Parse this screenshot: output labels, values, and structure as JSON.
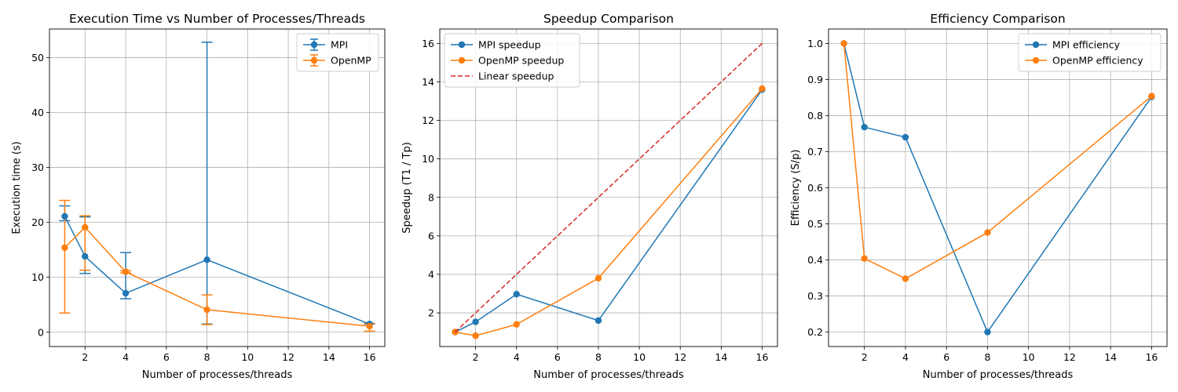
{
  "colors": {
    "mpi": "#1f77b4",
    "omp": "#ff7f0e",
    "linear": "#d62728",
    "grid": "#b0b0b0"
  },
  "chart_data": [
    {
      "type": "line",
      "title": "Execution Time vs Number of Processes/Threads",
      "xlabel": "Number of processes/threads",
      "ylabel": "Execution time (s)",
      "xlim": [
        0.25,
        16.75
      ],
      "ylim": [
        -2.6,
        55.2
      ],
      "xticks": [
        2,
        4,
        6,
        8,
        10,
        12,
        14,
        16
      ],
      "yticks": [
        0,
        10,
        20,
        30,
        40,
        50
      ],
      "grid": true,
      "legend_position": "top-right",
      "series": [
        {
          "name": "MPI",
          "x": [
            1,
            2,
            4,
            8,
            16
          ],
          "y": [
            21.1,
            13.8,
            7.1,
            13.2,
            1.5
          ],
          "err_low": [
            20.3,
            10.7,
            6.1,
            1.5,
            1.5
          ],
          "err_high": [
            23.0,
            21.0,
            14.5,
            52.8,
            1.6
          ]
        },
        {
          "name": "OpenMP",
          "x": [
            1,
            2,
            4,
            8,
            16
          ],
          "y": [
            15.4,
            19.1,
            11.0,
            4.1,
            1.1
          ],
          "err_low": [
            3.5,
            11.3,
            10.8,
            1.4,
            0.2
          ],
          "err_high": [
            24.0,
            21.2,
            11.2,
            6.8,
            1.6
          ]
        }
      ]
    },
    {
      "type": "line",
      "title": "Speedup Comparison",
      "xlabel": "Number of processes/threads",
      "ylabel": "Speedup (T1 / Tp)",
      "xlim": [
        0.25,
        16.75
      ],
      "ylim": [
        0.25,
        16.75
      ],
      "xticks": [
        2,
        4,
        6,
        8,
        10,
        12,
        14,
        16
      ],
      "yticks": [
        2,
        4,
        6,
        8,
        10,
        12,
        14,
        16
      ],
      "grid": true,
      "legend_position": "top-left",
      "series": [
        {
          "name": "MPI speedup",
          "x": [
            1,
            2,
            4,
            8,
            16
          ],
          "y": [
            1.0,
            1.53,
            2.97,
            1.6,
            13.6
          ]
        },
        {
          "name": "OpenMP speedup",
          "x": [
            1,
            2,
            4,
            8,
            16
          ],
          "y": [
            1.0,
            0.81,
            1.4,
            3.8,
            13.65
          ]
        },
        {
          "name": "Linear speedup",
          "x": [
            1,
            16
          ],
          "y": [
            1,
            16
          ],
          "dashed": true
        }
      ]
    },
    {
      "type": "line",
      "title": "Efficiency Comparison",
      "xlabel": "Number of processes/threads",
      "ylabel": "Efficiency (S/p)",
      "xlim": [
        0.25,
        16.75
      ],
      "ylim": [
        0.16,
        1.04
      ],
      "xticks": [
        2,
        4,
        6,
        8,
        10,
        12,
        14,
        16
      ],
      "yticks": [
        0.2,
        0.3,
        0.4,
        0.5,
        0.6,
        0.7,
        0.8,
        0.9,
        1.0
      ],
      "grid": true,
      "legend_position": "top-right",
      "series": [
        {
          "name": "MPI efficiency",
          "x": [
            1,
            2,
            4,
            8,
            16
          ],
          "y": [
            1.0,
            0.768,
            0.74,
            0.2,
            0.852
          ]
        },
        {
          "name": "OpenMP efficiency",
          "x": [
            1,
            2,
            4,
            8,
            16
          ],
          "y": [
            1.0,
            0.404,
            0.348,
            0.476,
            0.854
          ]
        }
      ]
    }
  ]
}
